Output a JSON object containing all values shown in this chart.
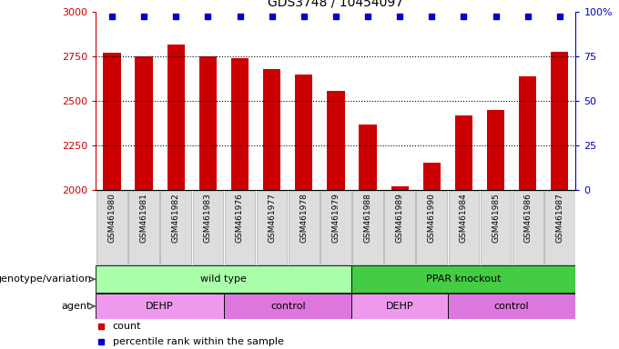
{
  "title": "GDS3748 / 10454097",
  "samples": [
    "GSM461980",
    "GSM461981",
    "GSM461982",
    "GSM461983",
    "GSM461976",
    "GSM461977",
    "GSM461978",
    "GSM461979",
    "GSM461988",
    "GSM461989",
    "GSM461990",
    "GSM461984",
    "GSM461985",
    "GSM461986",
    "GSM461987"
  ],
  "counts": [
    2775,
    2750,
    2820,
    2750,
    2740,
    2680,
    2650,
    2560,
    2370,
    2020,
    2155,
    2420,
    2450,
    2640,
    2780
  ],
  "ylim_left": [
    2000,
    3000
  ],
  "ylim_right": [
    0,
    100
  ],
  "bar_color": "#cc0000",
  "dot_color": "#0000cc",
  "tick_color_left": "#cc0000",
  "tick_color_right": "#0000cc",
  "genotype_groups": [
    {
      "label": "wild type",
      "start": 0,
      "end": 8,
      "color": "#aaffaa"
    },
    {
      "label": "PPAR knockout",
      "start": 8,
      "end": 15,
      "color": "#44cc44"
    }
  ],
  "agent_groups": [
    {
      "label": "DEHP",
      "start": 0,
      "end": 4,
      "color": "#ee99ee"
    },
    {
      "label": "control",
      "start": 4,
      "end": 8,
      "color": "#dd77dd"
    },
    {
      "label": "DEHP",
      "start": 8,
      "end": 11,
      "color": "#ee99ee"
    },
    {
      "label": "control",
      "start": 11,
      "end": 15,
      "color": "#dd77dd"
    }
  ],
  "legend_items": [
    {
      "label": "count",
      "color": "#cc0000"
    },
    {
      "label": "percentile rank within the sample",
      "color": "#0000cc"
    }
  ],
  "row_labels": [
    "genotype/variation",
    "agent"
  ],
  "yticks_left": [
    2000,
    2250,
    2500,
    2750,
    3000
  ],
  "yticks_right": [
    0,
    25,
    50,
    75,
    100
  ],
  "dotted_lines": [
    2250,
    2500,
    2750
  ]
}
